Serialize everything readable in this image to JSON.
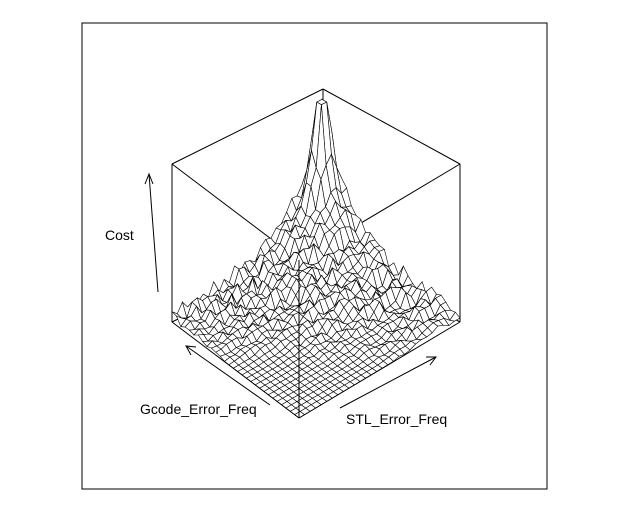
{
  "chart_data": {
    "type": "surface",
    "title": "",
    "xlabel": "STL_Error_Freq",
    "ylabel": "Gcode_Error_Freq",
    "zlabel": "Cost",
    "grid_resolution": [
      30,
      30
    ],
    "x_range": [
      0,
      1
    ],
    "y_range": [
      0,
      1
    ],
    "z_range": [
      0,
      1
    ],
    "surface_description": "sharp central peak near the far corner, noisy mid plateau, flat near front corner",
    "peak": {
      "x": 0.92,
      "y": 0.92,
      "z": 1.0
    },
    "colors": {
      "mesh_fill": "#ffffff",
      "mesh_line": "#000000",
      "box_line": "#000000"
    }
  }
}
